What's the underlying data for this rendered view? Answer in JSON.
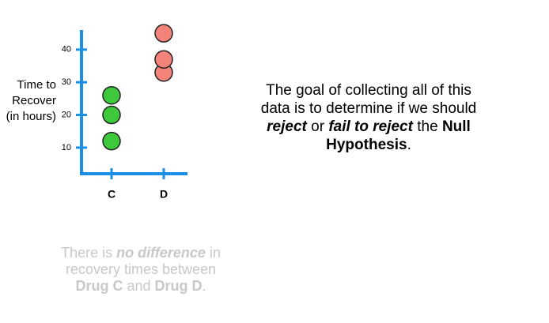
{
  "chart_data": {
    "type": "strip",
    "y_label": [
      "Time to",
      "Recover",
      "(in hours)"
    ],
    "categories": [
      "C",
      "D"
    ],
    "values": [
      [
        12,
        20,
        26
      ],
      [
        33,
        37,
        45
      ]
    ],
    "colors": [
      "#3ec93c",
      "#f4847a"
    ],
    "axis_color": "#1a8fe3",
    "ylim": [
      2,
      46
    ],
    "yticks": [
      10,
      20,
      30,
      40
    ]
  },
  "goal_text": [
    "The goal of collecting all of this data is to determine if we should ",
    "reject",
    " or ",
    "fail to reject",
    " the ",
    "Null Hypothesis",
    "."
  ],
  "null_text": [
    "There is ",
    "no difference",
    " in recovery times between ",
    "Drug C",
    " and ",
    "Drug D",
    "."
  ]
}
